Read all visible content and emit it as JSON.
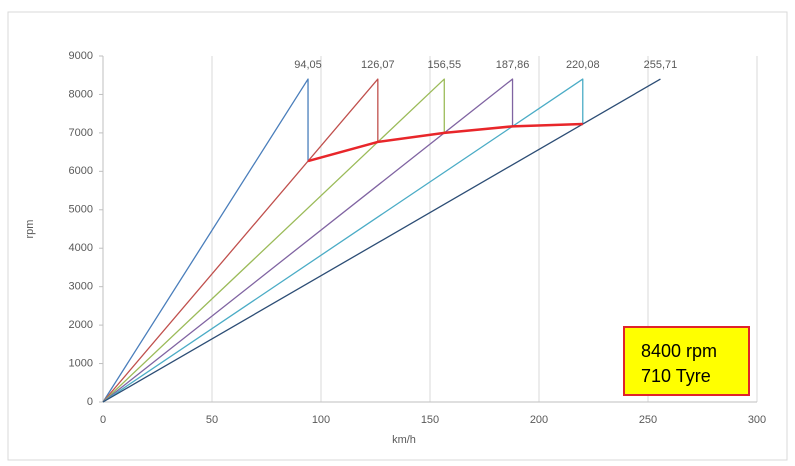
{
  "chart_data": {
    "type": "line",
    "x_label": "km/h",
    "y_label": "rpm",
    "xlim": [
      0,
      300
    ],
    "xticks": [
      0,
      50,
      100,
      150,
      200,
      250,
      300
    ],
    "ylim": [
      0,
      9000
    ],
    "yticks": [
      0,
      1000,
      2000,
      3000,
      4000,
      5000,
      6000,
      7000,
      8000,
      9000
    ],
    "grid": true,
    "series": [
      {
        "color": "#4a7ebb",
        "width": 1.3,
        "x": [
          0,
          94.05,
          94.05
        ],
        "values": [
          0,
          8400,
          6266
        ]
      },
      {
        "color": "#c0504d",
        "width": 1.3,
        "x": [
          0,
          126.07,
          126.07
        ],
        "values": [
          0,
          8400,
          6765
        ]
      },
      {
        "color": "#9bbb59",
        "width": 1.3,
        "x": [
          0,
          156.55,
          156.55
        ],
        "values": [
          0,
          8400,
          7000
        ]
      },
      {
        "color": "#8064a2",
        "width": 1.3,
        "x": [
          0,
          187.86,
          187.86
        ],
        "values": [
          0,
          8400,
          7170
        ]
      },
      {
        "color": "#4bacc6",
        "width": 1.3,
        "x": [
          0,
          220.08,
          220.08
        ],
        "values": [
          0,
          8400,
          7230
        ]
      },
      {
        "color": "#2c4d75",
        "width": 1.3,
        "x": [
          0,
          255.71
        ],
        "values": [
          0,
          8400
        ]
      },
      {
        "color": "#e8262a",
        "width": 2.5,
        "x": [
          94.05,
          126.07,
          156.55,
          187.86,
          220.08
        ],
        "values": [
          6266,
          6765,
          7000,
          7170,
          7230
        ]
      }
    ],
    "annotations": [
      {
        "x": 94.05,
        "y": 8400,
        "label": "94,05"
      },
      {
        "x": 126.07,
        "y": 8400,
        "label": "126,07"
      },
      {
        "x": 156.55,
        "y": 8400,
        "label": "156,55"
      },
      {
        "x": 187.86,
        "y": 8400,
        "label": "187,86"
      },
      {
        "x": 220.08,
        "y": 8400,
        "label": "220,08"
      },
      {
        "x": 255.71,
        "y": 8400,
        "label": "255,71"
      }
    ],
    "info_box": [
      "8400 rpm",
      "710 Tyre"
    ]
  }
}
